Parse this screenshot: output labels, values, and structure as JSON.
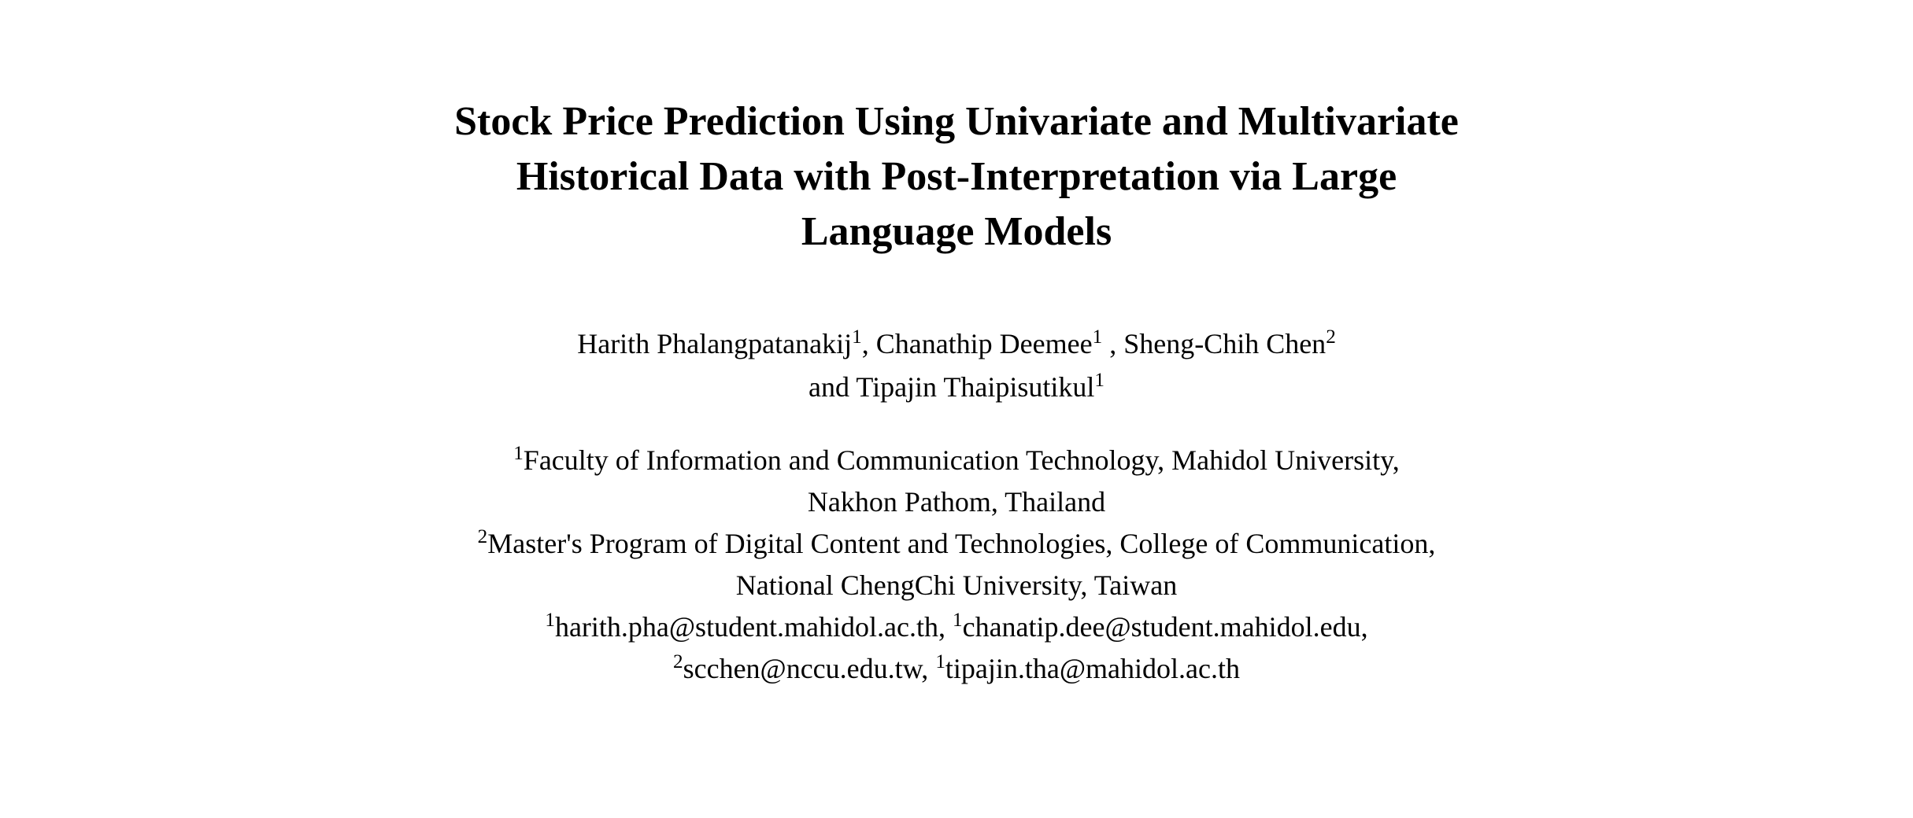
{
  "title": {
    "line1": "Stock Price Prediction Using Univariate and Multivariate",
    "line2": "Historical Data with Post-Interpretation via Large",
    "line3": "Language Models"
  },
  "authors": {
    "line1_parts": [
      {
        "text": "Harith Phalangpatanakij",
        "sup": "1"
      },
      {
        "text": ", Chanathip Deemee",
        "sup": "1"
      },
      {
        "text": " , Sheng-Chih Chen",
        "sup": "2"
      }
    ],
    "line2_parts": [
      {
        "text": "and Tipajin Thaipisutikul",
        "sup": "1"
      }
    ]
  },
  "affiliations": {
    "line1": {
      "sup": "1",
      "text": "Faculty of Information and Communication Technology, Mahidol University,"
    },
    "line2": {
      "text": "Nakhon Pathom, Thailand"
    },
    "line3": {
      "sup": "2",
      "text": "Master's Program of Digital Content and Technologies, College of Communication,"
    },
    "line4": {
      "text": "National ChengChi University, Taiwan"
    },
    "line5_parts": [
      {
        "sup": "1",
        "text": "harith.pha@student.mahidol.ac.th, "
      },
      {
        "sup": "1",
        "text": "chanatip.dee@student.mahidol.edu,"
      }
    ],
    "line6_parts": [
      {
        "sup": "2",
        "text": "scchen@nccu.edu.tw, "
      },
      {
        "sup": "1",
        "text": "tipajin.tha@mahidol.ac.th"
      }
    ]
  },
  "styles": {
    "background_color": "#ffffff",
    "text_color": "#000000",
    "title_fontsize": 52,
    "body_fontsize": 36,
    "font_family": "Times New Roman"
  }
}
